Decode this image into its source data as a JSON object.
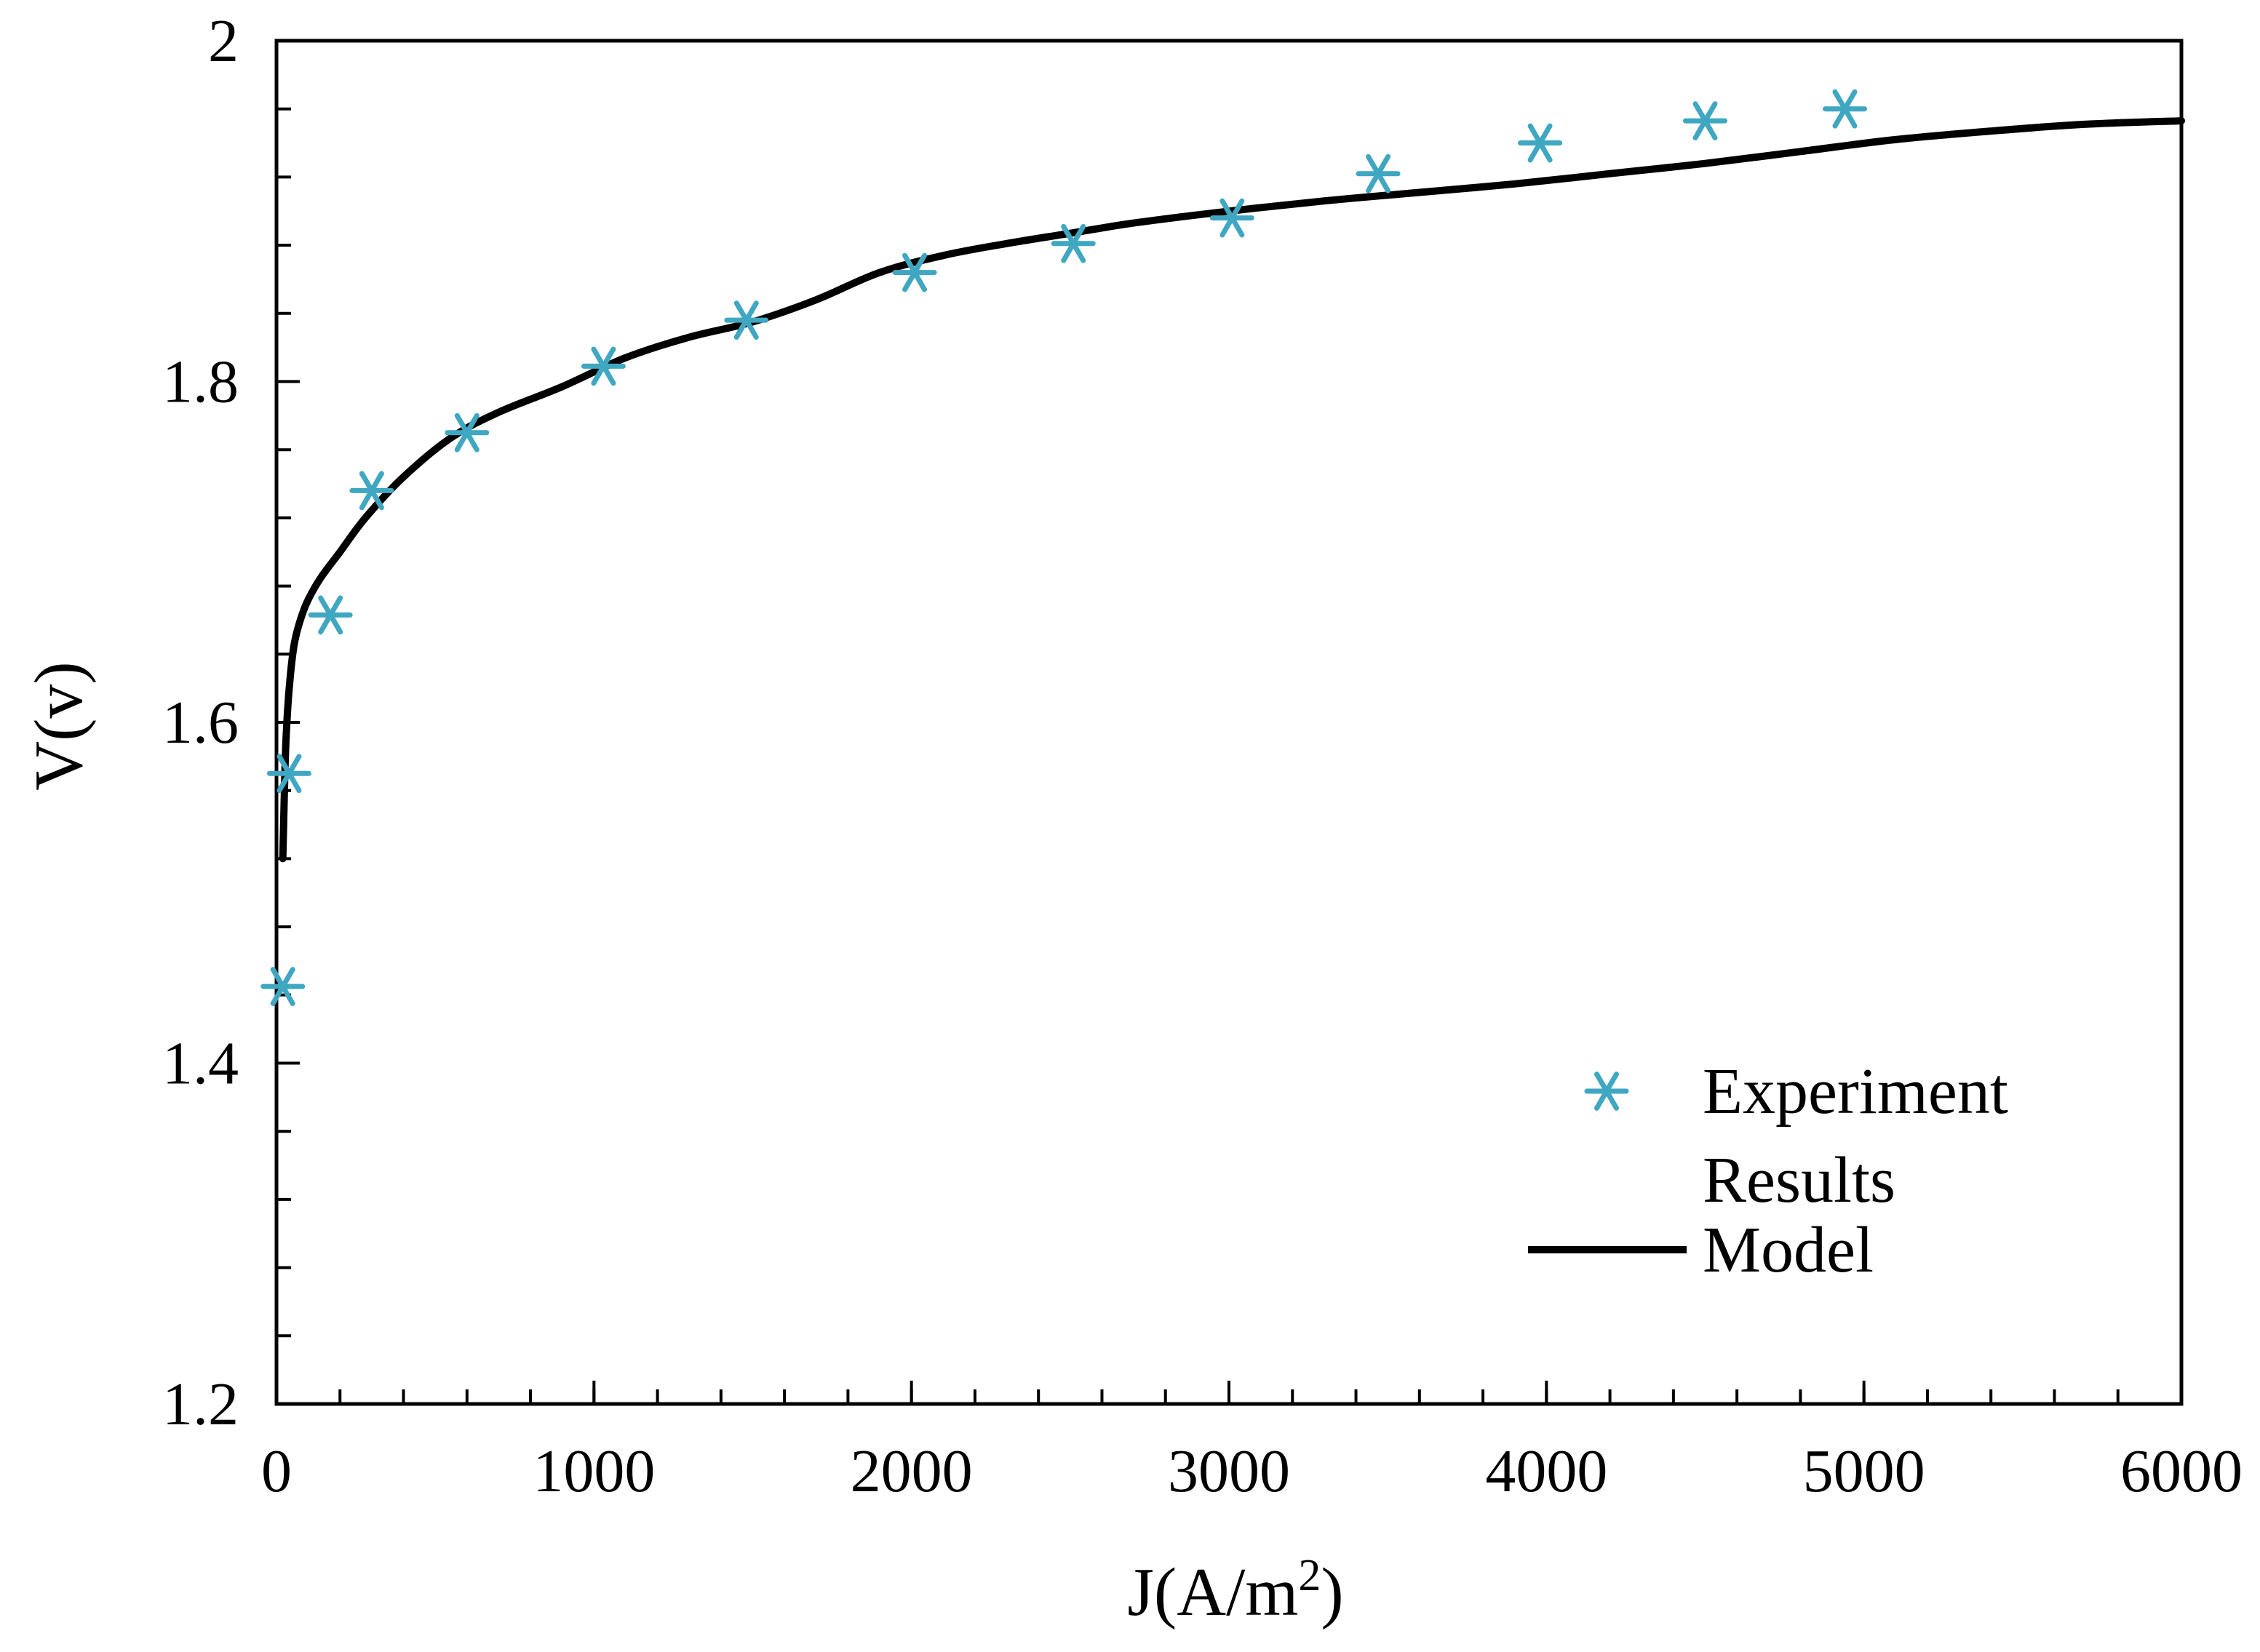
{
  "chart_data": {
    "type": "line",
    "title": "",
    "xlabel": "J(A/m",
    "xlabel_sup": "2",
    "xlabel_close": ")",
    "ylabel": "V(v)",
    "xlim": [
      0,
      6000
    ],
    "ylim": [
      1.2,
      2.0
    ],
    "xticks": [
      0,
      1000,
      2000,
      3000,
      4000,
      5000,
      6000
    ],
    "xtick_labels": [
      "0",
      "1000",
      "2000",
      "3000",
      "4000",
      "5000",
      "6000"
    ],
    "yticks": [
      1.2,
      1.4,
      1.6,
      1.8,
      2.0
    ],
    "ytick_labels": [
      "1.2",
      "1.4",
      "1.6",
      "1.8",
      "2"
    ],
    "x_minor_step": 200,
    "y_minor_step": 0.04,
    "grid": false,
    "legend_position": "bottom-right",
    "series": [
      {
        "name": "Experiment Results",
        "legend_line1": "Experiment",
        "legend_line2": "Results",
        "style": "scatter",
        "marker": "asterisk",
        "color": "#3fa7c1",
        "x": [
          20,
          40,
          170,
          300,
          600,
          1030,
          1480,
          2010,
          2510,
          3010,
          3470,
          3980,
          4500,
          4940
        ],
        "y": [
          1.445,
          1.57,
          1.663,
          1.736,
          1.77,
          1.809,
          1.836,
          1.864,
          1.881,
          1.896,
          1.922,
          1.94,
          1.953,
          1.96
        ]
      },
      {
        "name": "Model",
        "style": "line",
        "color": "#000000",
        "x": [
          20,
          25,
          30,
          40,
          55,
          75,
          100,
          140,
          200,
          280,
          400,
          550,
          700,
          900,
          1100,
          1300,
          1500,
          1700,
          1900,
          2100,
          2300,
          2500,
          2700,
          3000,
          3300,
          3600,
          3900,
          4200,
          4500,
          4800,
          5100,
          5400,
          5700,
          6000
        ],
        "y": [
          1.52,
          1.56,
          1.59,
          1.62,
          1.645,
          1.66,
          1.672,
          1.685,
          1.7,
          1.72,
          1.744,
          1.767,
          1.782,
          1.797,
          1.814,
          1.826,
          1.835,
          1.848,
          1.864,
          1.874,
          1.881,
          1.887,
          1.893,
          1.9,
          1.906,
          1.911,
          1.916,
          1.922,
          1.928,
          1.935,
          1.942,
          1.947,
          1.951,
          1.953
        ]
      }
    ]
  }
}
